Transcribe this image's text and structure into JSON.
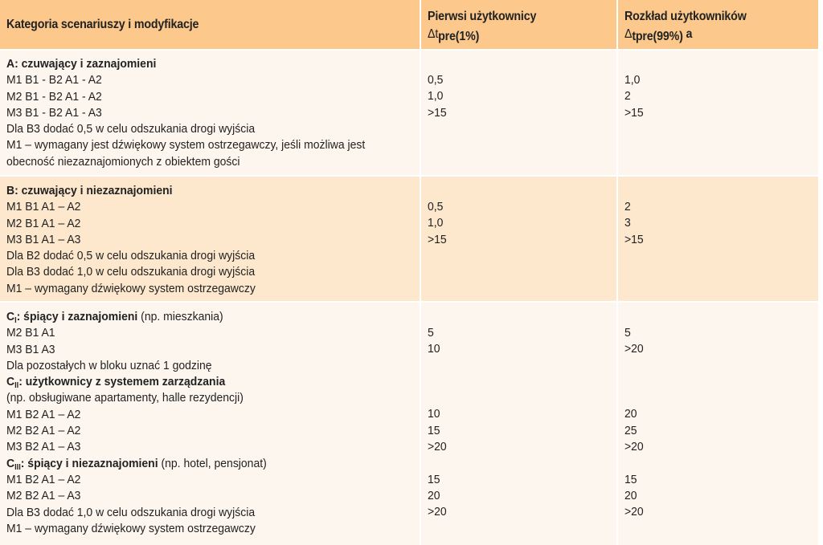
{
  "header": {
    "col1": "Kategoria scenariuszy i modyfikacje",
    "col2_line1": "Pierwsi użytkownicy",
    "col2_delta": "Δt",
    "col2_sub": "pre(1%)",
    "col3_line1": "Rozkład użytkowników",
    "col3_delta": "Δ",
    "col3_sub": "tpre(99%)",
    "col3_suffix": " a"
  },
  "section_a": {
    "title": "A: czuwający i zaznajomieni",
    "lines": [
      "M1 B1 - B2  A1 - A2",
      "M2 B1 - B2  A1 - A2",
      "M3 B1 - B2  A1 - A3",
      "Dla B3 dodać 0,5 w celu odszukania drogi wyjścia",
      "M1 – wymagany jest dźwiękowy system ostrzegawczy, jeśli możliwa jest",
      "obecność niezaznajomionych z obiektem gości"
    ],
    "col2": [
      "0,5",
      "1,0",
      ">15"
    ],
    "col3": [
      "1,0",
      "2",
      ">15"
    ]
  },
  "section_b": {
    "title": "B: czuwający i niezaznajomieni",
    "lines": [
      "M1 B1 A1 – A2",
      "M2 B1 A1 – A2",
      "M3 B1 A1 – A3",
      "Dla B2 dodać 0,5 w celu odszukania drogi wyjścia",
      "Dla B3 dodać 1,0 w celu odszukania drogi wyjścia",
      "M1 – wymagany dźwiękowy system ostrzegawczy"
    ],
    "col2": [
      "0,5",
      "1,0",
      ">15"
    ],
    "col3": [
      "2",
      "3",
      ">15"
    ]
  },
  "section_c": {
    "ci_letter": "C",
    "ci_sub": "I",
    "ci_title": ": śpiący i zaznajomieni",
    "ci_note": " (np. mieszkania)",
    "ci_lines": [
      "M2 B1 A1",
      "M3 B1 A3",
      "Dla pozostałych w bloku uznać 1 godzinę"
    ],
    "cii_letter": "C",
    "cii_sub": "II",
    "cii_title": ": użytkownicy z systemem zarządzania",
    "cii_note": "(np. obsługiwane apartamenty, halle rezydencji)",
    "cii_lines": [
      "M1  B2  A1 – A2",
      "M2  B2  A1 – A2",
      "M3  B2  A1 – A3"
    ],
    "ciii_letter": "C",
    "ciii_sub": "III",
    "ciii_title": ": śpiący i niezaznajomieni",
    "ciii_note": " (np. hotel, pensjonat)",
    "ciii_lines": [
      "M1 B2 A1 – A2",
      "M2 B2 A1 – A3",
      "Dla B3 dodać 1,0 w celu odszukania drogi wyjścia",
      "M1 – wymagany dźwiękowy system ostrzegawczy"
    ],
    "col2": [
      "5",
      "10",
      "10",
      "15",
      ">20",
      "15",
      "20",
      ">20"
    ],
    "col3": [
      "5",
      ">20",
      "20",
      "25",
      ">20",
      "15",
      "20",
      ">20"
    ]
  }
}
